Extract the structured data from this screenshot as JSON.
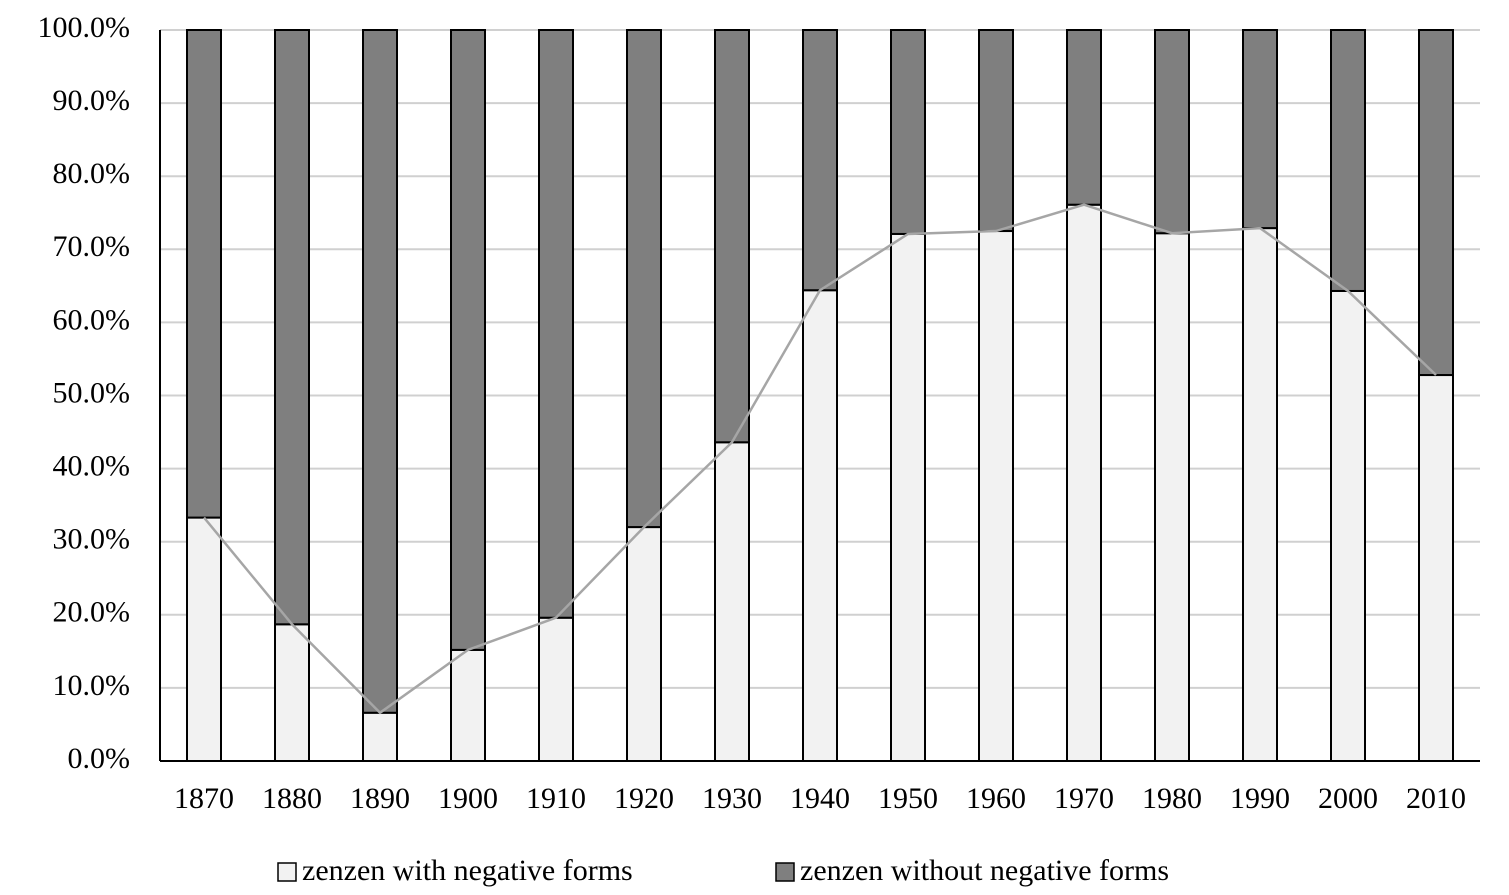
{
  "chart_data": {
    "type": "stacked_bar",
    "categories": [
      "1870",
      "1880",
      "1890",
      "1900",
      "1910",
      "1920",
      "1930",
      "1940",
      "1950",
      "1960",
      "1970",
      "1980",
      "1990",
      "2000",
      "2010"
    ],
    "series": [
      {
        "name": "zenzen with negative forms",
        "color": "#f2f2f2",
        "values": [
          33.3,
          18.7,
          6.6,
          15.2,
          19.6,
          32.0,
          43.6,
          64.4,
          72.1,
          72.5,
          76.1,
          72.2,
          72.9,
          64.3,
          52.8
        ]
      },
      {
        "name": "zenzen without negative forms",
        "color": "#7f7f7f",
        "values": [
          66.7,
          81.3,
          93.4,
          84.8,
          80.4,
          68.0,
          56.4,
          35.6,
          27.9,
          27.5,
          23.9,
          27.8,
          27.1,
          35.7,
          47.2
        ]
      }
    ],
    "ylim": [
      0,
      100
    ],
    "yticks": [
      {
        "value": 0,
        "label": "0.0%"
      },
      {
        "value": 10,
        "label": "10.0%"
      },
      {
        "value": 20,
        "label": "20.0%"
      },
      {
        "value": 30,
        "label": "30.0%"
      },
      {
        "value": 40,
        "label": "40.0%"
      },
      {
        "value": 50,
        "label": "50.0%"
      },
      {
        "value": 60,
        "label": "60.0%"
      },
      {
        "value": 70,
        "label": "70.0%"
      },
      {
        "value": 80,
        "label": "80.0%"
      },
      {
        "value": 90,
        "label": "90.0%"
      },
      {
        "value": 100,
        "label": "100.0%"
      }
    ],
    "grid": true,
    "connector_line": true,
    "connector_color": "#a6a6a6",
    "legend": "bottom"
  }
}
